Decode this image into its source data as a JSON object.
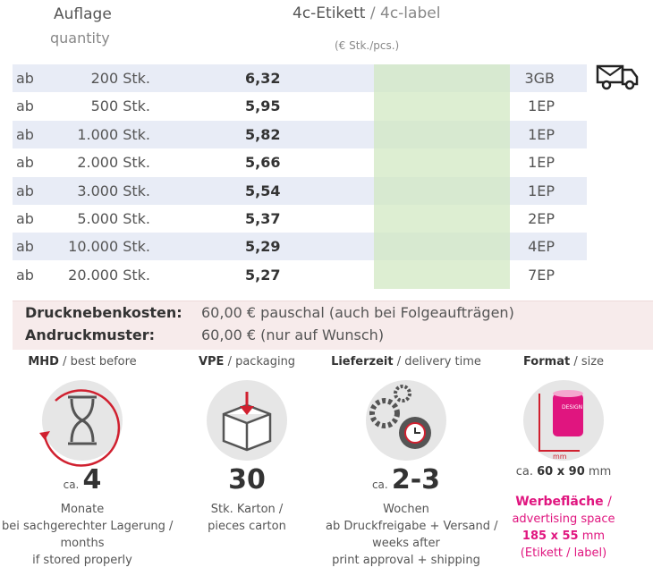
{
  "header": {
    "quantity_de": "Auflage",
    "quantity_en": "quantity",
    "label_de": "4c-Etikett",
    "label_en": "/ 4c-label",
    "unit": "(€ Stk./pcs.)"
  },
  "table": {
    "rows": [
      [
        "ab",
        "200 Stk.",
        "6,32",
        "3GB"
      ],
      [
        "ab",
        "500 Stk.",
        "5,95",
        "1EP"
      ],
      [
        "ab",
        "1.000 Stk.",
        "5,82",
        "1EP"
      ],
      [
        "ab",
        "2.000 Stk.",
        "5,66",
        "1EP"
      ],
      [
        "ab",
        "3.000 Stk.",
        "5,54",
        "1EP"
      ],
      [
        "ab",
        "5.000 Stk.",
        "5,37",
        "2EP"
      ],
      [
        "ab",
        "10.000 Stk.",
        "5,29",
        "4EP"
      ],
      [
        "ab",
        "20.000 Stk.",
        "5,27",
        "7EP"
      ]
    ]
  },
  "extras": [
    [
      "Drucknebenkosten:",
      "60,00 € pauschal (auch bei Folgeaufträgen)"
    ],
    [
      "Andruckmuster:",
      "60,00 € (nur auf Wunsch)"
    ]
  ],
  "info": [
    {
      "title": "MHD",
      "title_en": "/ best before",
      "prefix": "ca.",
      "value": "4",
      "lines": [
        "Monate",
        "bei sachgerechter Lagerung /",
        "months",
        "if stored properly"
      ]
    },
    {
      "title": "VPE",
      "title_en": "/ packaging",
      "value": "30",
      "lines": [
        "Stk. Karton /",
        "pieces carton"
      ]
    },
    {
      "title": "Lieferzeit",
      "title_en": "/ delivery time",
      "prefix": "ca.",
      "value": "2-3",
      "lines": [
        "Wochen",
        "ab Druckfreigabe + Versand /",
        "weeks after",
        "print approval + shipping"
      ]
    },
    {
      "title": "Format",
      "title_en": "/ size",
      "icon_design": "DESIGN",
      "icon_unit": "mm",
      "size_prefix": "ca.",
      "size": "60 x 90",
      "size_unit": "mm",
      "ad_title": "Werbefläche",
      "ad_sep": "/",
      "ad_en": "advertising space",
      "ad_size": "185 x 55",
      "ad_unit": "mm",
      "ad_note": "(Etikett / label)"
    }
  ]
}
